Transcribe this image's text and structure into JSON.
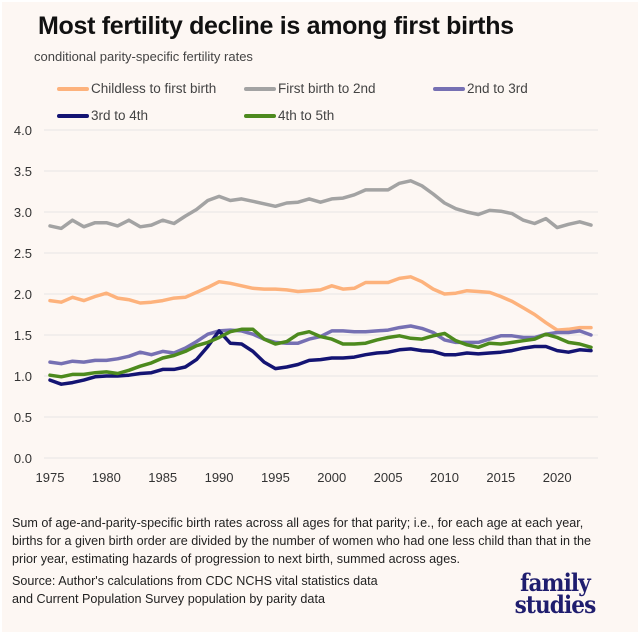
{
  "header": {
    "title": "Most fertility decline is among first births",
    "subtitle": "conditional parity-specific fertility rates"
  },
  "footer": {
    "note": "Sum of age-and-parity-specific birth rates across all ages for that parity; i.e., for each age at each year, births for a given birth order are divided by the number of women who had one less child than that in the prior year, estimating hazards of progression to next birth, summed across ages.",
    "source_line1": "Source: Author's calculations from CDC NCHS vital statistics data",
    "source_line2": "and Current Population Survey population by parity data",
    "logo_line1": "family",
    "logo_line2": "studies"
  },
  "chart_data": {
    "type": "line",
    "title": "Most fertility decline is among first births",
    "subtitle": "conditional parity-specific fertility rates",
    "xlabel": "",
    "ylabel": "",
    "xlim": [
      1975,
      2023
    ],
    "ylim": [
      0,
      4
    ],
    "grid": true,
    "legend": "top",
    "x_ticks": [
      1975,
      1980,
      1985,
      1990,
      1995,
      2000,
      2005,
      2010,
      2015,
      2020
    ],
    "y_ticks": [
      "0.0",
      "0.5",
      "1.0",
      "1.5",
      "2.0",
      "2.5",
      "3.0",
      "3.5",
      "4.0"
    ],
    "x": [
      1975,
      1976,
      1977,
      1978,
      1979,
      1980,
      1981,
      1982,
      1983,
      1984,
      1985,
      1986,
      1987,
      1988,
      1989,
      1990,
      1991,
      1992,
      1993,
      1994,
      1995,
      1996,
      1997,
      1998,
      1999,
      2000,
      2001,
      2002,
      2003,
      2004,
      2005,
      2006,
      2007,
      2008,
      2009,
      2010,
      2011,
      2012,
      2013,
      2014,
      2015,
      2016,
      2017,
      2018,
      2019,
      2020,
      2021,
      2022,
      2023
    ],
    "series": [
      {
        "name": "Childless to first birth",
        "color": "#fdb27c",
        "values": [
          1.92,
          1.9,
          1.96,
          1.92,
          1.97,
          2.01,
          1.95,
          1.93,
          1.89,
          1.9,
          1.92,
          1.95,
          1.96,
          2.02,
          2.08,
          2.15,
          2.13,
          2.1,
          2.07,
          2.06,
          2.06,
          2.05,
          2.03,
          2.04,
          2.05,
          2.1,
          2.06,
          2.07,
          2.14,
          2.14,
          2.14,
          2.19,
          2.21,
          2.15,
          2.06,
          2.0,
          2.01,
          2.04,
          2.03,
          2.02,
          1.97,
          1.91,
          1.83,
          1.75,
          1.65,
          1.56,
          1.57,
          1.59,
          1.59
        ]
      },
      {
        "name": "First birth to 2nd",
        "color": "#a3a3a3",
        "values": [
          2.83,
          2.8,
          2.9,
          2.82,
          2.87,
          2.87,
          2.83,
          2.9,
          2.82,
          2.84,
          2.9,
          2.86,
          2.95,
          3.03,
          3.14,
          3.19,
          3.14,
          3.16,
          3.13,
          3.1,
          3.07,
          3.11,
          3.12,
          3.16,
          3.12,
          3.16,
          3.17,
          3.21,
          3.27,
          3.27,
          3.27,
          3.35,
          3.38,
          3.32,
          3.22,
          3.11,
          3.04,
          3.0,
          2.97,
          3.02,
          3.01,
          2.98,
          2.9,
          2.86,
          2.92,
          2.81,
          2.85,
          2.88,
          2.84
        ]
      },
      {
        "name": "2nd to 3rd",
        "color": "#7670b3",
        "values": [
          1.17,
          1.15,
          1.18,
          1.17,
          1.19,
          1.19,
          1.21,
          1.24,
          1.29,
          1.26,
          1.3,
          1.28,
          1.34,
          1.42,
          1.51,
          1.55,
          1.56,
          1.55,
          1.51,
          1.45,
          1.41,
          1.4,
          1.4,
          1.45,
          1.48,
          1.55,
          1.55,
          1.54,
          1.54,
          1.55,
          1.56,
          1.59,
          1.61,
          1.58,
          1.53,
          1.44,
          1.41,
          1.41,
          1.41,
          1.45,
          1.49,
          1.49,
          1.47,
          1.47,
          1.51,
          1.53,
          1.53,
          1.55,
          1.5
        ]
      },
      {
        "name": "3rd to 4th",
        "color": "#141473",
        "values": [
          0.95,
          0.9,
          0.92,
          0.95,
          0.99,
          1.0,
          1.0,
          1.01,
          1.03,
          1.04,
          1.08,
          1.08,
          1.11,
          1.2,
          1.36,
          1.55,
          1.4,
          1.39,
          1.3,
          1.17,
          1.09,
          1.11,
          1.14,
          1.19,
          1.2,
          1.22,
          1.22,
          1.23,
          1.26,
          1.28,
          1.29,
          1.32,
          1.33,
          1.31,
          1.3,
          1.26,
          1.26,
          1.28,
          1.27,
          1.28,
          1.29,
          1.31,
          1.34,
          1.36,
          1.36,
          1.31,
          1.29,
          1.32,
          1.31
        ]
      },
      {
        "name": "4th to 5th",
        "color": "#4d8a1e",
        "values": [
          1.01,
          0.99,
          1.02,
          1.02,
          1.04,
          1.05,
          1.03,
          1.07,
          1.12,
          1.16,
          1.22,
          1.25,
          1.3,
          1.37,
          1.41,
          1.47,
          1.54,
          1.57,
          1.57,
          1.45,
          1.39,
          1.42,
          1.51,
          1.54,
          1.48,
          1.45,
          1.39,
          1.39,
          1.4,
          1.44,
          1.47,
          1.49,
          1.46,
          1.45,
          1.49,
          1.52,
          1.43,
          1.38,
          1.35,
          1.4,
          1.39,
          1.41,
          1.43,
          1.45,
          1.51,
          1.47,
          1.41,
          1.39,
          1.35
        ]
      }
    ]
  }
}
